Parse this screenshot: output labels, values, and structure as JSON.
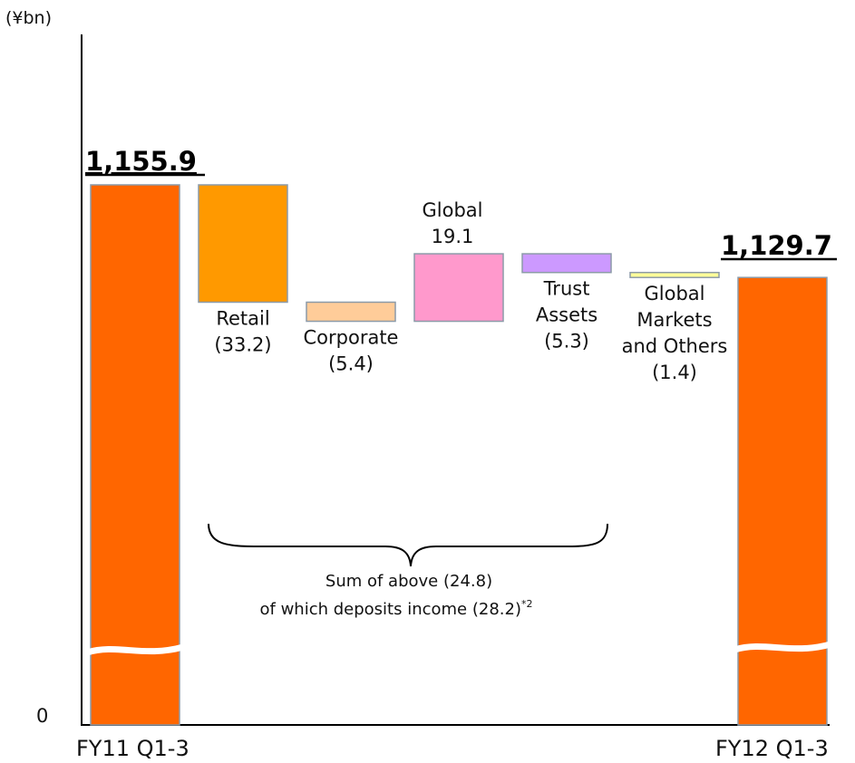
{
  "chart_data": {
    "type": "bar",
    "subtype": "waterfall",
    "unit_label": "(¥bn)",
    "zero_label": "0",
    "axis_break": true,
    "start": {
      "category": "FY11 Q1-3",
      "value": 1155.9,
      "label": "1,155.9",
      "color": "#ff6600"
    },
    "end": {
      "category": "FY12 Q1-3",
      "value": 1129.7,
      "label": "1,129.7",
      "color": "#ff6600"
    },
    "steps": [
      {
        "lines": [
          "Retail",
          "(33.2)"
        ],
        "value": -33.2,
        "color": "#ff9900"
      },
      {
        "lines": [
          "Corporate",
          "(5.4)"
        ],
        "value": -5.4,
        "color": "#ffcc99"
      },
      {
        "lines": [
          "Global",
          "19.1"
        ],
        "value": 19.1,
        "color": "#ff99cc"
      },
      {
        "lines": [
          "Trust",
          "Assets",
          "(5.3)"
        ],
        "value": -5.3,
        "color": "#cc99ff"
      },
      {
        "lines": [
          "Global",
          "Markets",
          "and Others",
          "(1.4)"
        ],
        "value": -1.4,
        "color": "#ffff99"
      }
    ],
    "brace_note": {
      "line1": "Sum of above (24.8)",
      "line2": "of which deposits income (28.2)",
      "superscript": "*2"
    }
  }
}
